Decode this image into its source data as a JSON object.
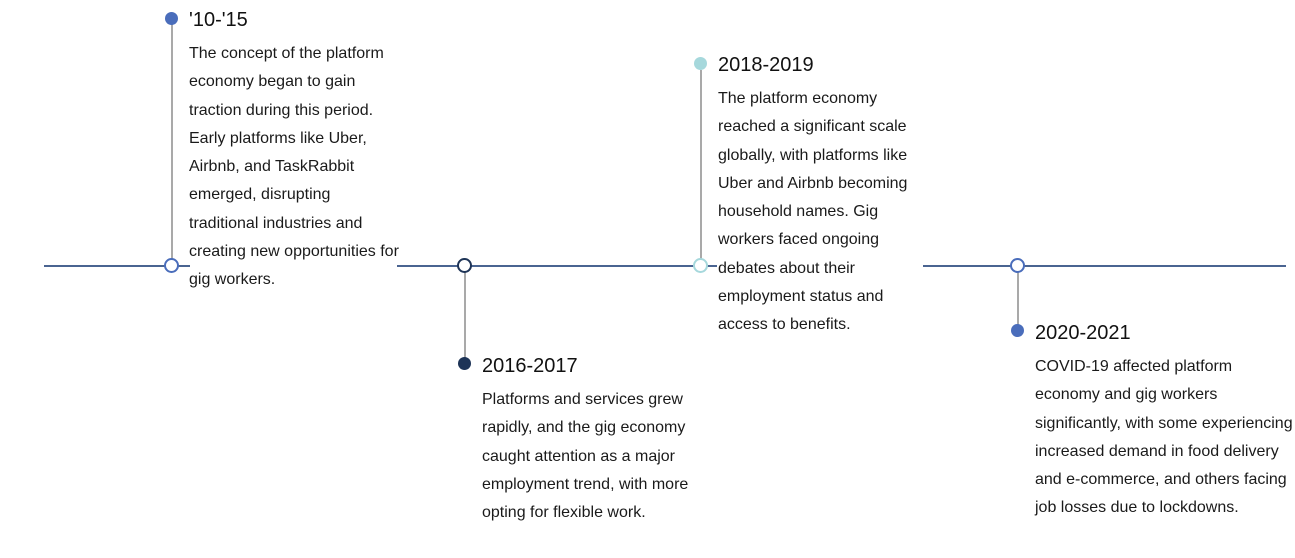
{
  "timeline": {
    "colors": {
      "axis": "#4a6491",
      "stem": "#a9a9a9"
    },
    "events": [
      {
        "period": "'10-'15",
        "description": "The concept of the platform economy began to gain traction during this period. Early platforms like Uber, Airbnb, and TaskRabbit emerged, disrupting traditional industries and creating new opportunities for gig workers.",
        "color": "#4a6dbb"
      },
      {
        "period": "2016-2017",
        "description": "Platforms and services grew rapidly, and the gig economy caught attention as a major employment trend, with more opting for flexible work.",
        "color": "#1e3457"
      },
      {
        "period": "2018-2019",
        "description": "The platform economy reached a significant scale globally, with platforms like Uber and Airbnb becoming household names. Gig workers faced ongoing debates about their employment status and access to benefits.",
        "color": "#a6d8dc"
      },
      {
        "period": "2020-2021",
        "description": "COVID-19 affected platform economy and gig workers significantly, with some experiencing increased demand in food delivery and e-commerce, and others facing job losses due to lockdowns.",
        "color": "#4a6dbb"
      }
    ]
  }
}
